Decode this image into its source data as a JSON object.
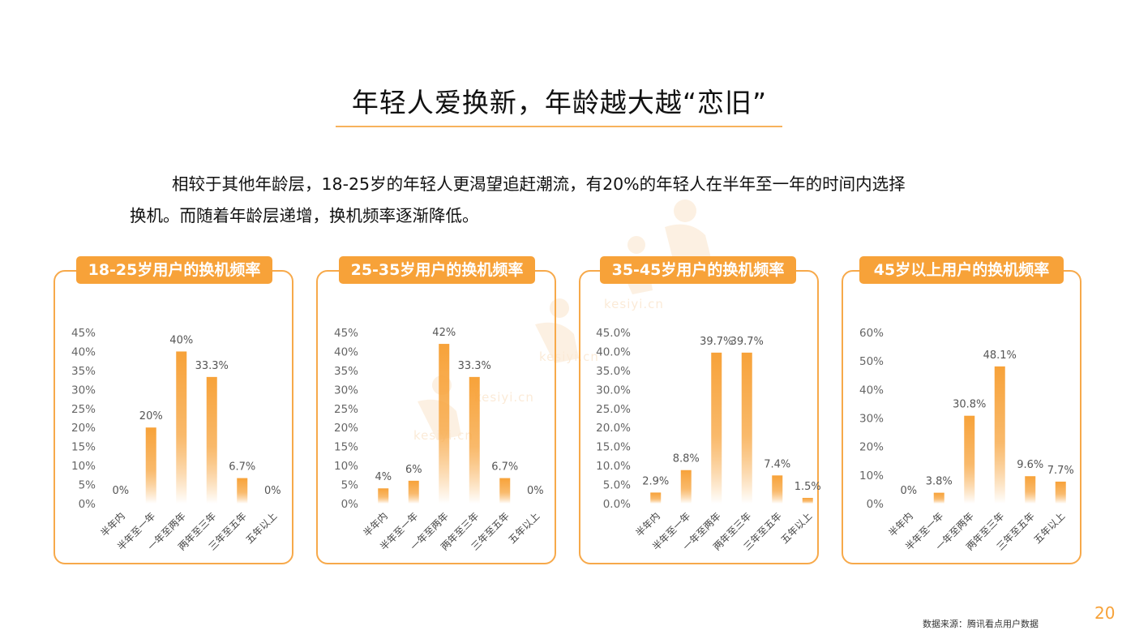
{
  "page": {
    "title": "年轻人爱换新，年龄越大越“恋旧”",
    "intro_line1": "相较于其他年龄层，18-25岁的年轻人更渴望追赶潮流，有20%的年轻人在半年至一年的时间内选择",
    "intro_line2": "换机。而随着年龄层递增，换机频率逐渐降低。",
    "source": "数据来源：腾讯看点用户数据",
    "page_number": "20",
    "watermark": "kesiyi.cn"
  },
  "colors": {
    "accent": "#f7a239",
    "bar_top": "#f7a239",
    "bar_bottom": "#ffffff",
    "border": "#f7a94a",
    "tick": "#666666"
  },
  "chart_data": [
    {
      "type": "bar",
      "title": "18-25岁用户的换机频率",
      "categories": [
        "半年内",
        "半年至一年",
        "一年至两年",
        "两年至三年",
        "三年至五年",
        "五年以上"
      ],
      "values": [
        0,
        20,
        40,
        33.3,
        6.7,
        0
      ],
      "value_labels": [
        "0%",
        "20%",
        "40%",
        "33.3%",
        "6.7%",
        "0%"
      ],
      "yticks": [
        "0%",
        "5%",
        "10%",
        "15%",
        "20%",
        "25%",
        "30%",
        "35%",
        "40%",
        "45%"
      ],
      "ylim": [
        0,
        45
      ],
      "grid": false
    },
    {
      "type": "bar",
      "title": "25-35岁用户的换机频率",
      "categories": [
        "半年内",
        "半年至一年",
        "一年至两年",
        "两年至三年",
        "三年至五年",
        "五年以上"
      ],
      "values": [
        4,
        6,
        42,
        33.3,
        6.7,
        0
      ],
      "value_labels": [
        "4%",
        "6%",
        "42%",
        "33.3%",
        "6.7%",
        "0%"
      ],
      "yticks": [
        "0%",
        "5%",
        "10%",
        "15%",
        "20%",
        "25%",
        "30%",
        "35%",
        "40%",
        "45%"
      ],
      "ylim": [
        0,
        45
      ],
      "grid": false
    },
    {
      "type": "bar",
      "title": "35-45岁用户的换机频率",
      "categories": [
        "半年内",
        "半年至一年",
        "一年至两年",
        "两年至三年",
        "三年至五年",
        "五年以上"
      ],
      "values": [
        2.9,
        8.8,
        39.7,
        39.7,
        7.4,
        1.5
      ],
      "value_labels": [
        "2.9%",
        "8.8%",
        "39.7%",
        "39.7%",
        "7.4%",
        "1.5%"
      ],
      "yticks": [
        "0.0%",
        "5.0%",
        "10.0%",
        "15.0%",
        "20.0%",
        "25.0%",
        "30.0%",
        "35.0%",
        "40.0%",
        "45.0%"
      ],
      "ylim": [
        0,
        45
      ],
      "grid": false
    },
    {
      "type": "bar",
      "title": "45岁以上用户的换机频率",
      "categories": [
        "半年内",
        "半年至一年",
        "一年至两年",
        "两年至三年",
        "三年至五年",
        "五年以上"
      ],
      "values": [
        0,
        3.8,
        30.8,
        48.1,
        9.6,
        7.7
      ],
      "value_labels": [
        "0%",
        "3.8%",
        "30.8%",
        "48.1%",
        "9.6%",
        "7.7%"
      ],
      "yticks": [
        "0%",
        "10%",
        "20%",
        "30%",
        "40%",
        "50%",
        "60%"
      ],
      "ylim": [
        0,
        60
      ],
      "grid": false
    }
  ]
}
